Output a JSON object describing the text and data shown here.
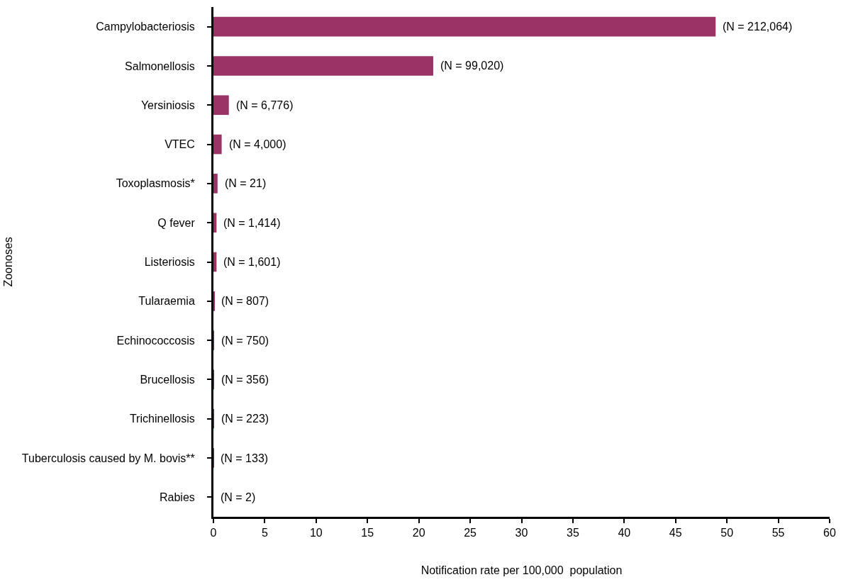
{
  "chart_data": {
    "type": "bar",
    "orientation": "horizontal",
    "xlabel": "Notification rate per 100,000  population",
    "ylabel": "Zoonoses",
    "categories": [
      "Campylobacteriosis",
      "Salmonellosis",
      "Yersiniosis",
      "VTEC",
      "Toxoplasmosis*",
      "Q fever",
      "Listeriosis",
      "Tularaemia",
      "Echinococcosis",
      "Brucellosis",
      "Trichinellosis",
      "Tuberculosis caused by M. bovis**",
      "Rabies"
    ],
    "values": [
      48.9,
      21.4,
      1.5,
      0.8,
      0.4,
      0.3,
      0.3,
      0.1,
      0.05,
      0.05,
      0.05,
      0.03,
      0
    ],
    "annotations": [
      {
        "text": "(N = 212,064)",
        "x": 48.9,
        "y": "Campylobacteriosis"
      },
      {
        "text": "(N = 99,020)",
        "x": 21.4,
        "y": "Salmonellosis"
      },
      {
        "text": "(N = 6,776)",
        "x": 1.5,
        "y": "Yersiniosis"
      },
      {
        "text": "(N = 4,000)",
        "x": 0.8,
        "y": "VTEC"
      },
      {
        "text": "(N = 21)",
        "x": 0.4,
        "y": "Toxoplasmosis*"
      },
      {
        "text": "(N = 1,414)",
        "x": 0.3,
        "y": "Q fever"
      },
      {
        "text": "(N = 1,601)",
        "x": 0.3,
        "y": "Listeriosis"
      },
      {
        "text": "(N = 807)",
        "x": 0.1,
        "y": "Tularaemia"
      },
      {
        "text": "(N = 750)",
        "x": 0.05,
        "y": "Echinococcosis"
      },
      {
        "text": "(N = 356)",
        "x": 0.05,
        "y": "Brucellosis"
      },
      {
        "text": "(N = 223)",
        "x": 0.05,
        "y": "Trichinellosis"
      },
      {
        "text": "(N = 133)",
        "x": 0.03,
        "y": "Tuberculosis caused by M. bovis**"
      },
      {
        "text": "(N = 2)",
        "x": 0,
        "y": "Rabies"
      }
    ],
    "color": "#993366",
    "xlim": [
      0,
      60
    ],
    "xticks": [
      0,
      5,
      10,
      15,
      20,
      25,
      30,
      35,
      40,
      45,
      50,
      55,
      60
    ],
    "legend": false
  }
}
